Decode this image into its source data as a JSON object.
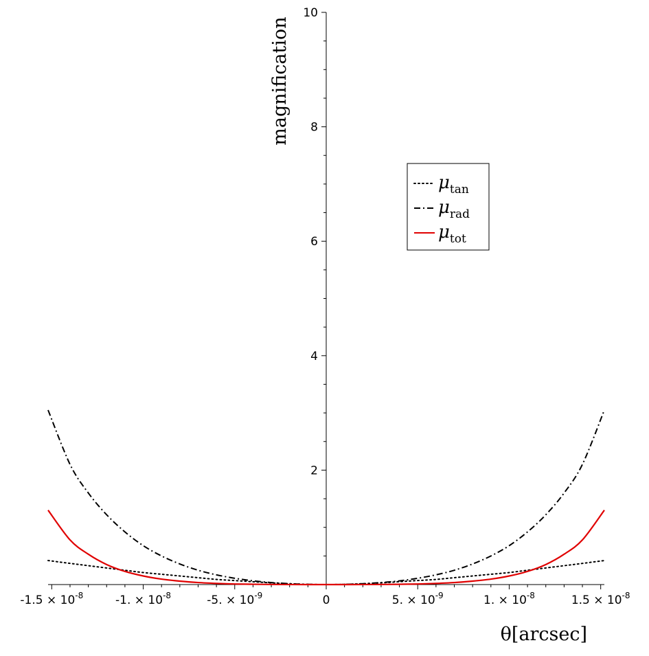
{
  "chart_data": {
    "type": "line",
    "title": "",
    "xlabel": "θ[arcsec]",
    "ylabel": "magnification",
    "xlim": [
      -1.52e-08,
      1.52e-08
    ],
    "ylim": [
      0,
      10
    ],
    "grid": false,
    "legend_position": "upper-right",
    "x_ticks": [
      {
        "value": -1.5e-08,
        "mantissa": "-1.5",
        "exp": "-8"
      },
      {
        "value": -1e-08,
        "mantissa": "-1.",
        "exp": "-8"
      },
      {
        "value": -5e-09,
        "mantissa": "-5.",
        "exp": "-9"
      },
      {
        "value": 0,
        "mantissa": "0",
        "exp": ""
      },
      {
        "value": 5e-09,
        "mantissa": "5.",
        "exp": "-9"
      },
      {
        "value": 1e-08,
        "mantissa": "1.",
        "exp": "-8"
      },
      {
        "value": 1.5e-08,
        "mantissa": "1.5",
        "exp": "-8"
      }
    ],
    "y_ticks": [
      2,
      4,
      6,
      8,
      10
    ],
    "times_symbol": "×",
    "ten": "10",
    "x": [
      -1.52e-08,
      -1.4e-08,
      -1.3e-08,
      -1.2e-08,
      -1.1e-08,
      -1e-08,
      -9e-09,
      -8e-09,
      -7e-09,
      -6e-09,
      -5e-09,
      -4e-09,
      -3e-09,
      -2e-09,
      -1e-09,
      0,
      1e-09,
      2e-09,
      3e-09,
      4e-09,
      5e-09,
      6e-09,
      7e-09,
      8e-09,
      9e-09,
      1e-08,
      1.1e-08,
      1.2e-08,
      1.3e-08,
      1.4e-08,
      1.52e-08
    ],
    "series": [
      {
        "name": "μ",
        "subscript": "tan",
        "style": "dotted",
        "color": "#000000",
        "values": [
          0.42,
          0.37,
          0.33,
          0.29,
          0.25,
          0.21,
          0.18,
          0.15,
          0.12,
          0.09,
          0.07,
          0.05,
          0.03,
          0.015,
          0.004,
          0,
          0.004,
          0.015,
          0.03,
          0.05,
          0.07,
          0.09,
          0.12,
          0.15,
          0.18,
          0.21,
          0.25,
          0.29,
          0.33,
          0.37,
          0.42
        ]
      },
      {
        "name": "μ",
        "subscript": "rad",
        "style": "dashdot",
        "color": "#000000",
        "values": [
          3.05,
          2.1,
          1.6,
          1.22,
          0.92,
          0.68,
          0.5,
          0.36,
          0.25,
          0.17,
          0.11,
          0.065,
          0.035,
          0.015,
          0.004,
          0,
          0.004,
          0.015,
          0.035,
          0.065,
          0.11,
          0.17,
          0.25,
          0.36,
          0.5,
          0.68,
          0.92,
          1.22,
          1.6,
          2.1,
          3.05
        ]
      },
      {
        "name": "μ",
        "subscript": "tot",
        "style": "solid",
        "color": "#e00000",
        "values": [
          1.3,
          0.78,
          0.53,
          0.35,
          0.23,
          0.15,
          0.095,
          0.06,
          0.035,
          0.02,
          0.01,
          0.005,
          0.002,
          0.0008,
          0.0002,
          0,
          0.0002,
          0.0008,
          0.002,
          0.005,
          0.01,
          0.02,
          0.035,
          0.06,
          0.095,
          0.15,
          0.23,
          0.35,
          0.53,
          0.78,
          1.3
        ]
      }
    ]
  }
}
